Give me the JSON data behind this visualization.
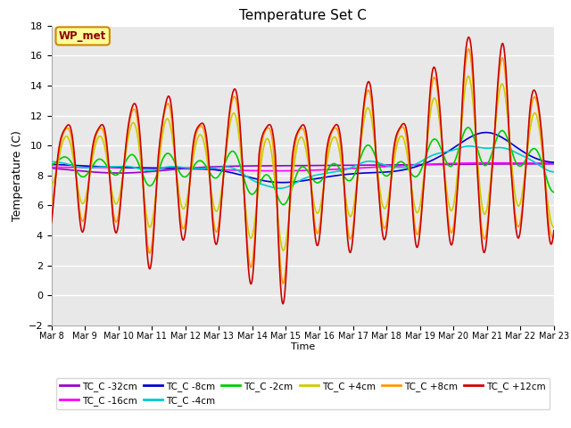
{
  "title": "Temperature Set C",
  "ylabel": "Temperature (C)",
  "xlabel": "Time",
  "ylim": [
    -2,
    18
  ],
  "yticks": [
    -2,
    0,
    2,
    4,
    6,
    8,
    10,
    12,
    14,
    16,
    18
  ],
  "x_tick_labels": [
    "Mar 8",
    "Mar 9",
    "Mar 10",
    "Mar 11",
    "Mar 12",
    "Mar 13",
    "Mar 14",
    "Mar 15",
    "Mar 16",
    "Mar 17",
    "Mar 18",
    "Mar 19",
    "Mar 20",
    "Mar 21",
    "Mar 22",
    "Mar 23"
  ],
  "series_order": [
    "TC_C -32cm",
    "TC_C -16cm",
    "TC_C -8cm",
    "TC_C -4cm",
    "TC_C -2cm",
    "TC_C +4cm",
    "TC_C +8cm",
    "TC_C +12cm"
  ],
  "series": {
    "TC_C -32cm": {
      "color": "#9900CC",
      "lw": 1.2
    },
    "TC_C -16cm": {
      "color": "#FF00FF",
      "lw": 1.2
    },
    "TC_C -8cm": {
      "color": "#0000CC",
      "lw": 1.2
    },
    "TC_C -4cm": {
      "color": "#00CCCC",
      "lw": 1.2
    },
    "TC_C -2cm": {
      "color": "#00CC00",
      "lw": 1.2
    },
    "TC_C +4cm": {
      "color": "#CCCC00",
      "lw": 1.2
    },
    "TC_C +8cm": {
      "color": "#FF9900",
      "lw": 1.2
    },
    "TC_C +12cm": {
      "color": "#CC0000",
      "lw": 1.2
    }
  },
  "bg_color": "#DCDCDC",
  "plot_bg": "#E8E8E8",
  "annotation_text": "WP_met",
  "annotation_box_color": "#FFFF99",
  "annotation_border_color": "#CC8800",
  "figsize": [
    6.4,
    4.8
  ],
  "dpi": 100
}
